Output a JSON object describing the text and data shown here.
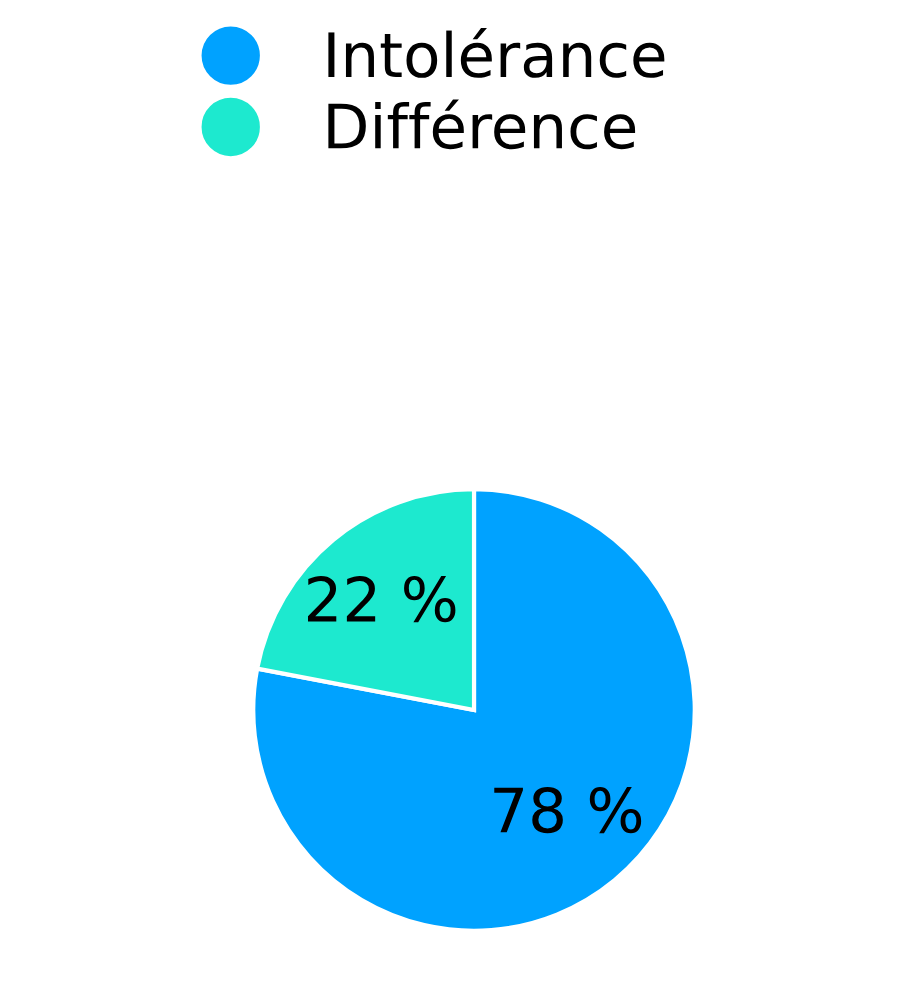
{
  "chart_data": {
    "type": "pie",
    "categories": [
      "Intolérance",
      "Différence"
    ],
    "values": [
      78,
      22
    ],
    "colors": [
      "#00a2ff",
      "#1de9cf"
    ],
    "value_labels": [
      "78 %",
      "22 %"
    ],
    "legend": "top"
  }
}
